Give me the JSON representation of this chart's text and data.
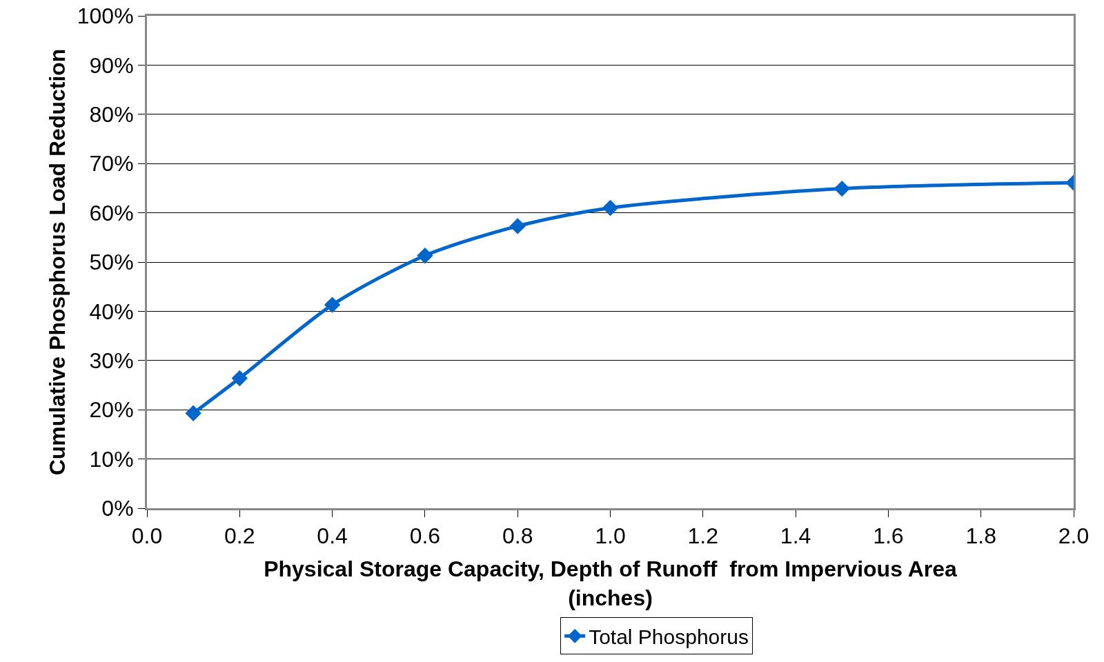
{
  "chart_data": {
    "type": "line",
    "xlabel": "Physical Storage Capacity, Depth of Runoff  from Impervious Area\n(inches)",
    "ylabel": "Cumulative Phosphorus Load Reduction",
    "x": [
      0.1,
      0.2,
      0.4,
      0.6,
      0.8,
      1.0,
      1.5,
      2.0
    ],
    "series": [
      {
        "name": "Total Phosphorus",
        "color": "#0066cc",
        "values": [
          19.3,
          26.4,
          41.3,
          51.3,
          57.3,
          61.0,
          64.9,
          66.1
        ]
      }
    ],
    "xlim": [
      0,
      2
    ],
    "xticks": [
      {
        "value": 0,
        "label": "0.0"
      },
      {
        "value": 0.2,
        "label": "0.2"
      },
      {
        "value": 0.4,
        "label": "0.4"
      },
      {
        "value": 0.6,
        "label": "0.6"
      },
      {
        "value": 0.8,
        "label": "0.8"
      },
      {
        "value": 1,
        "label": "1.0"
      },
      {
        "value": 1.2,
        "label": "1.2"
      },
      {
        "value": 1.4,
        "label": "1.4"
      },
      {
        "value": 1.6,
        "label": "1.6"
      },
      {
        "value": 1.8,
        "label": "1.8"
      },
      {
        "value": 2,
        "label": "2.0"
      }
    ],
    "ylim": [
      0,
      100
    ],
    "yticks": [
      {
        "value": 0,
        "label": "0%"
      },
      {
        "value": 10,
        "label": "10%"
      },
      {
        "value": 20,
        "label": "20%"
      },
      {
        "value": 30,
        "label": "30%"
      },
      {
        "value": 40,
        "label": "40%"
      },
      {
        "value": 50,
        "label": "50%"
      },
      {
        "value": 60,
        "label": "60%"
      },
      {
        "value": 70,
        "label": "70%"
      },
      {
        "value": 80,
        "label": "80%"
      },
      {
        "value": 90,
        "label": "90%"
      },
      {
        "value": 100,
        "label": "100%"
      }
    ],
    "grid": "y",
    "legend": "bottom",
    "marker": "diamond",
    "line_style": "solid"
  }
}
